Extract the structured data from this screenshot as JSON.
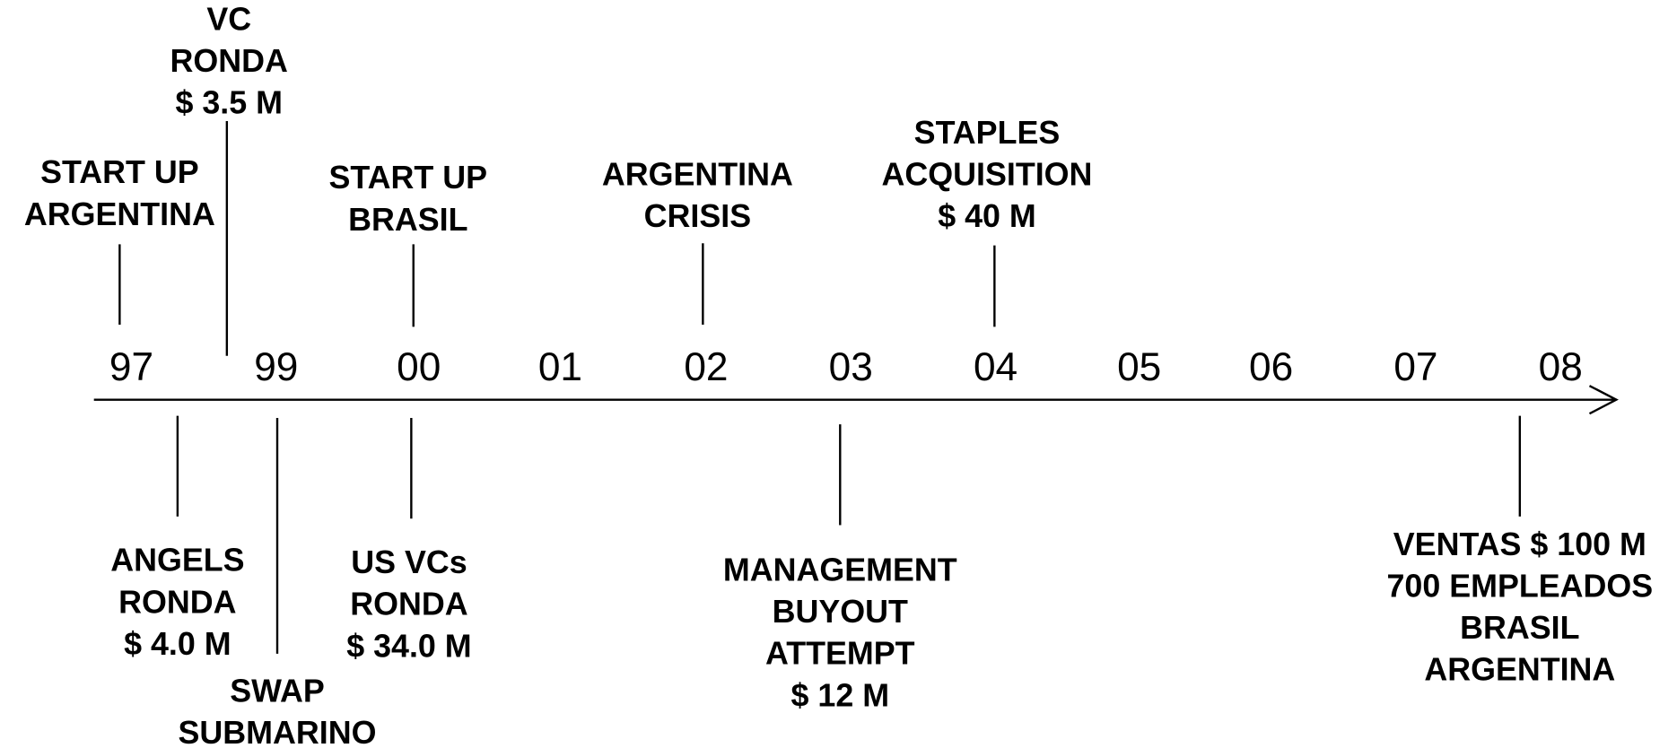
{
  "years": [
    "97",
    "99",
    "00",
    "01",
    "02",
    "03",
    "04",
    "05",
    "06",
    "07",
    "08"
  ],
  "events_above": [
    {
      "lines": [
        "START UP",
        "ARGENTINA"
      ]
    },
    {
      "lines": [
        "VC",
        "RONDA",
        "$ 3.5 M"
      ]
    },
    {
      "lines": [
        "START UP",
        "BRASIL"
      ]
    },
    {
      "lines": [
        "ARGENTINA",
        "CRISIS"
      ]
    },
    {
      "lines": [
        "STAPLES",
        "ACQUISITION",
        "$ 40 M"
      ]
    }
  ],
  "events_below": [
    {
      "lines": [
        "ANGELS",
        "RONDA",
        "$ 4.0 M"
      ]
    },
    {
      "lines": [
        "SWAP",
        "SUBMARINO"
      ]
    },
    {
      "lines": [
        "US VCs",
        "RONDA",
        "$ 34.0 M"
      ]
    },
    {
      "lines": [
        "MANAGEMENT",
        "BUYOUT",
        "ATTEMPT",
        "$ 12 M"
      ]
    },
    {
      "lines": [
        "VENTAS $ 100 M",
        "700 EMPLEADOS",
        "BRASIL",
        "ARGENTINA"
      ]
    }
  ]
}
